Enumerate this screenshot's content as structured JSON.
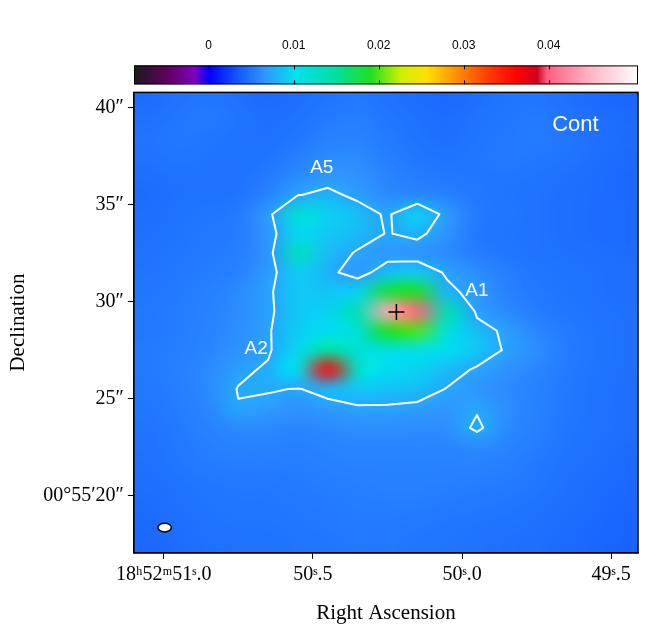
{
  "chart_data": {
    "type": "heatmap",
    "x_label": "Right Ascension",
    "y_label": "Declination",
    "xlim": [
      51.1,
      49.41
    ],
    "ylim": [
      17.07,
      40.77
    ],
    "xticks": [
      {
        "value": 51.0,
        "label": "18ʰ52ᵐ51ˢ.0"
      },
      {
        "value": 50.5,
        "label": "50ˢ.5"
      },
      {
        "value": 50.0,
        "label": "50ˢ.0"
      },
      {
        "value": 49.5,
        "label": "49ˢ.5"
      }
    ],
    "yticks": [
      {
        "value": 20,
        "label": "00°55′20″"
      },
      {
        "value": 25,
        "label": "25″"
      },
      {
        "value": 30,
        "label": "30″"
      },
      {
        "value": 35,
        "label": "35″"
      },
      {
        "value": 40,
        "label": "40″"
      }
    ],
    "grid": false,
    "x": [
      51.05,
      50.95,
      50.85,
      50.75,
      50.65,
      50.55,
      50.45,
      50.35,
      50.25,
      50.15,
      50.05,
      49.95,
      49.85,
      49.75,
      49.65,
      49.55,
      49.45
    ],
    "y": [
      40.5,
      39.5,
      38.5,
      37.5,
      36.5,
      35.5,
      34.5,
      33.5,
      32.5,
      31.5,
      30.5,
      29.5,
      28.5,
      27.5,
      26.5,
      25.5,
      24.5,
      23.5,
      22.5,
      21.5,
      20.5,
      19.5,
      18.5,
      17.5
    ],
    "cells": [
      [
        0.0045,
        0.0048,
        0.005,
        0.0047,
        0.0044,
        0.0046,
        0.0049,
        0.0051,
        0.0048,
        0.0045,
        0.0043,
        0.0046,
        0.0049,
        0.005,
        0.0047,
        0.0044,
        0.0042
      ],
      [
        0.0047,
        0.005,
        0.0052,
        0.0049,
        0.0046,
        0.0048,
        0.0052,
        0.0054,
        0.005,
        0.0047,
        0.0045,
        0.0048,
        0.005,
        0.0052,
        0.0049,
        0.0046,
        0.0044
      ],
      [
        0.0049,
        0.0051,
        0.005,
        0.0048,
        0.0047,
        0.005,
        0.0055,
        0.0056,
        0.0052,
        0.0048,
        0.0046,
        0.0049,
        0.0051,
        0.0053,
        0.005,
        0.0047,
        0.0045
      ],
      [
        0.0048,
        0.005,
        0.0049,
        0.0047,
        0.0049,
        0.0054,
        0.006,
        0.006,
        0.0054,
        0.005,
        0.0048,
        0.005,
        0.0052,
        0.0051,
        0.0049,
        0.0046,
        0.0044
      ],
      [
        0.0046,
        0.0048,
        0.0048,
        0.0048,
        0.0052,
        0.006,
        0.0066,
        0.0064,
        0.0057,
        0.0053,
        0.0051,
        0.005,
        0.005,
        0.0049,
        0.0047,
        0.0045,
        0.0043
      ],
      [
        0.0045,
        0.0047,
        0.0048,
        0.0049,
        0.0056,
        0.0074,
        0.008,
        0.007,
        0.006,
        0.0058,
        0.0055,
        0.0051,
        0.0049,
        0.0048,
        0.0046,
        0.0045,
        0.0043
      ],
      [
        0.0046,
        0.0048,
        0.005,
        0.0052,
        0.0068,
        0.012,
        0.0095,
        0.0085,
        0.0072,
        0.0095,
        0.0068,
        0.0052,
        0.005,
        0.0048,
        0.0046,
        0.0045,
        0.0044
      ],
      [
        0.0047,
        0.0049,
        0.0051,
        0.0053,
        0.0066,
        0.0098,
        0.009,
        0.0084,
        0.0074,
        0.008,
        0.0064,
        0.0051,
        0.0049,
        0.0048,
        0.0046,
        0.0045,
        0.0044
      ],
      [
        0.0048,
        0.005,
        0.0052,
        0.0054,
        0.0065,
        0.013,
        0.0085,
        0.0073,
        0.0066,
        0.0064,
        0.006,
        0.0053,
        0.005,
        0.0048,
        0.0047,
        0.0046,
        0.0045
      ],
      [
        0.0049,
        0.0051,
        0.0053,
        0.0056,
        0.0068,
        0.0092,
        0.008,
        0.0066,
        0.0086,
        0.009,
        0.0072,
        0.0062,
        0.0054,
        0.005,
        0.0048,
        0.0047,
        0.0046
      ],
      [
        0.005,
        0.0052,
        0.0055,
        0.006,
        0.0072,
        0.009,
        0.0088,
        0.0095,
        0.018,
        0.019,
        0.008,
        0.0068,
        0.0056,
        0.0051,
        0.0049,
        0.0047,
        0.0046
      ],
      [
        0.0051,
        0.0053,
        0.0056,
        0.0061,
        0.0071,
        0.009,
        0.0095,
        0.014,
        0.044,
        0.04,
        0.014,
        0.007,
        0.006,
        0.0053,
        0.005,
        0.0048,
        0.0047
      ],
      [
        0.0051,
        0.0053,
        0.0057,
        0.0062,
        0.0073,
        0.0092,
        0.01,
        0.012,
        0.019,
        0.02,
        0.0115,
        0.0085,
        0.007,
        0.0058,
        0.0052,
        0.0049,
        0.0047
      ],
      [
        0.0052,
        0.0054,
        0.0058,
        0.0064,
        0.0072,
        0.0098,
        0.015,
        0.0115,
        0.011,
        0.011,
        0.01,
        0.009,
        0.0072,
        0.0062,
        0.0053,
        0.0049,
        0.0047
      ],
      [
        0.0052,
        0.0055,
        0.006,
        0.007,
        0.0078,
        0.0105,
        0.036,
        0.0125,
        0.01,
        0.0095,
        0.0085,
        0.0072,
        0.0064,
        0.0058,
        0.0052,
        0.0049,
        0.0047
      ],
      [
        0.0051,
        0.0054,
        0.006,
        0.0076,
        0.0077,
        0.0074,
        0.0082,
        0.009,
        0.0088,
        0.0085,
        0.0074,
        0.0066,
        0.006,
        0.0056,
        0.0051,
        0.0048,
        0.0046
      ],
      [
        0.005,
        0.0053,
        0.0058,
        0.0074,
        0.0068,
        0.0064,
        0.0068,
        0.0072,
        0.0072,
        0.007,
        0.0066,
        0.0073,
        0.0062,
        0.0056,
        0.0051,
        0.0048,
        0.0046
      ],
      [
        0.0049,
        0.0052,
        0.0056,
        0.006,
        0.006,
        0.0058,
        0.006,
        0.0062,
        0.0062,
        0.0061,
        0.0062,
        0.0079,
        0.006,
        0.0055,
        0.005,
        0.0048,
        0.0046
      ],
      [
        0.0048,
        0.0051,
        0.0054,
        0.0056,
        0.0056,
        0.0055,
        0.0057,
        0.0058,
        0.0058,
        0.0058,
        0.0058,
        0.006,
        0.0057,
        0.0053,
        0.0049,
        0.0047,
        0.0045
      ],
      [
        0.0047,
        0.005,
        0.0052,
        0.0053,
        0.0053,
        0.0053,
        0.0055,
        0.0056,
        0.0056,
        0.0056,
        0.0056,
        0.0056,
        0.0054,
        0.0051,
        0.0048,
        0.0046,
        0.0044
      ],
      [
        0.0046,
        0.0048,
        0.005,
        0.0051,
        0.0051,
        0.0052,
        0.0053,
        0.0054,
        0.0055,
        0.0055,
        0.0054,
        0.0053,
        0.0052,
        0.005,
        0.0047,
        0.0045,
        0.0043
      ],
      [
        0.0045,
        0.0047,
        0.0049,
        0.005,
        0.005,
        0.0051,
        0.0052,
        0.0053,
        0.0053,
        0.0053,
        0.0052,
        0.0051,
        0.005,
        0.0048,
        0.0046,
        0.0044,
        0.0042
      ],
      [
        0.0044,
        0.0046,
        0.0048,
        0.0049,
        0.0049,
        0.005,
        0.0051,
        0.0052,
        0.0052,
        0.0051,
        0.005,
        0.0049,
        0.0048,
        0.0047,
        0.0045,
        0.0043,
        0.0041
      ],
      [
        0.0043,
        0.0045,
        0.0047,
        0.0048,
        0.0048,
        0.0049,
        0.005,
        0.0051,
        0.0051,
        0.005,
        0.0049,
        0.0048,
        0.0047,
        0.0046,
        0.0044,
        0.0042,
        0.0041
      ]
    ],
    "colorbar": {
      "range": [
        -0.0088,
        0.0505
      ],
      "ticks": [
        0,
        0.01,
        0.02,
        0.03,
        0.04
      ]
    },
    "contour": {
      "level": 0.0075,
      "color": "#ffffff"
    },
    "marker": {
      "x": 50.22,
      "y": 29.47,
      "marker": "cross",
      "color": "#000000"
    },
    "annotations": [
      {
        "text": "A1",
        "x": 49.95,
        "y": 30.58
      },
      {
        "text": "A2",
        "x": 50.69,
        "y": 27.55
      },
      {
        "text": "A5",
        "x": 50.47,
        "y": 36.9
      },
      {
        "text": "Cont",
        "x": 49.62,
        "y": 39.1
      }
    ],
    "beam": {
      "x": 50.997,
      "y": 18.37,
      "width": 0.045,
      "height": 0.45
    }
  }
}
